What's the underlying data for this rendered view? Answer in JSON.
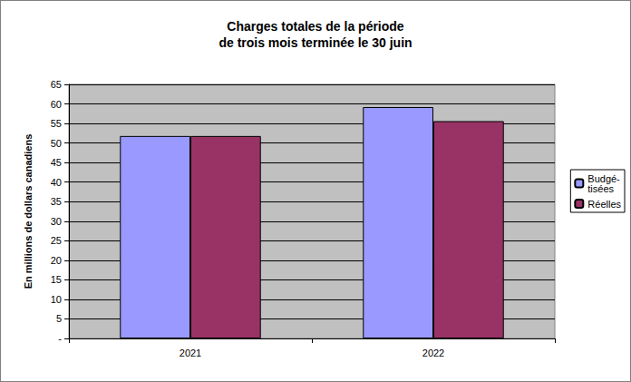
{
  "chart_data": {
    "type": "bar",
    "title": "Charges totales de la période\nde trois mois terminée le 30 juin",
    "y_label": "En millions de dollars canadiens",
    "categories": [
      "2021",
      "2022"
    ],
    "series": [
      {
        "name": "Budgé-\ntisées",
        "color": "#9999ff",
        "values": [
          51.8,
          59.2
        ]
      },
      {
        "name": "Réelles",
        "color": "#993366",
        "values": [
          51.8,
          55.6
        ]
      }
    ],
    "ylim": [
      0,
      65
    ],
    "yticks": [
      {
        "value": 0,
        "label": "-"
      },
      5,
      10,
      15,
      20,
      25,
      30,
      35,
      40,
      45,
      50,
      55,
      60,
      65
    ],
    "grid": true,
    "legend": "right"
  }
}
